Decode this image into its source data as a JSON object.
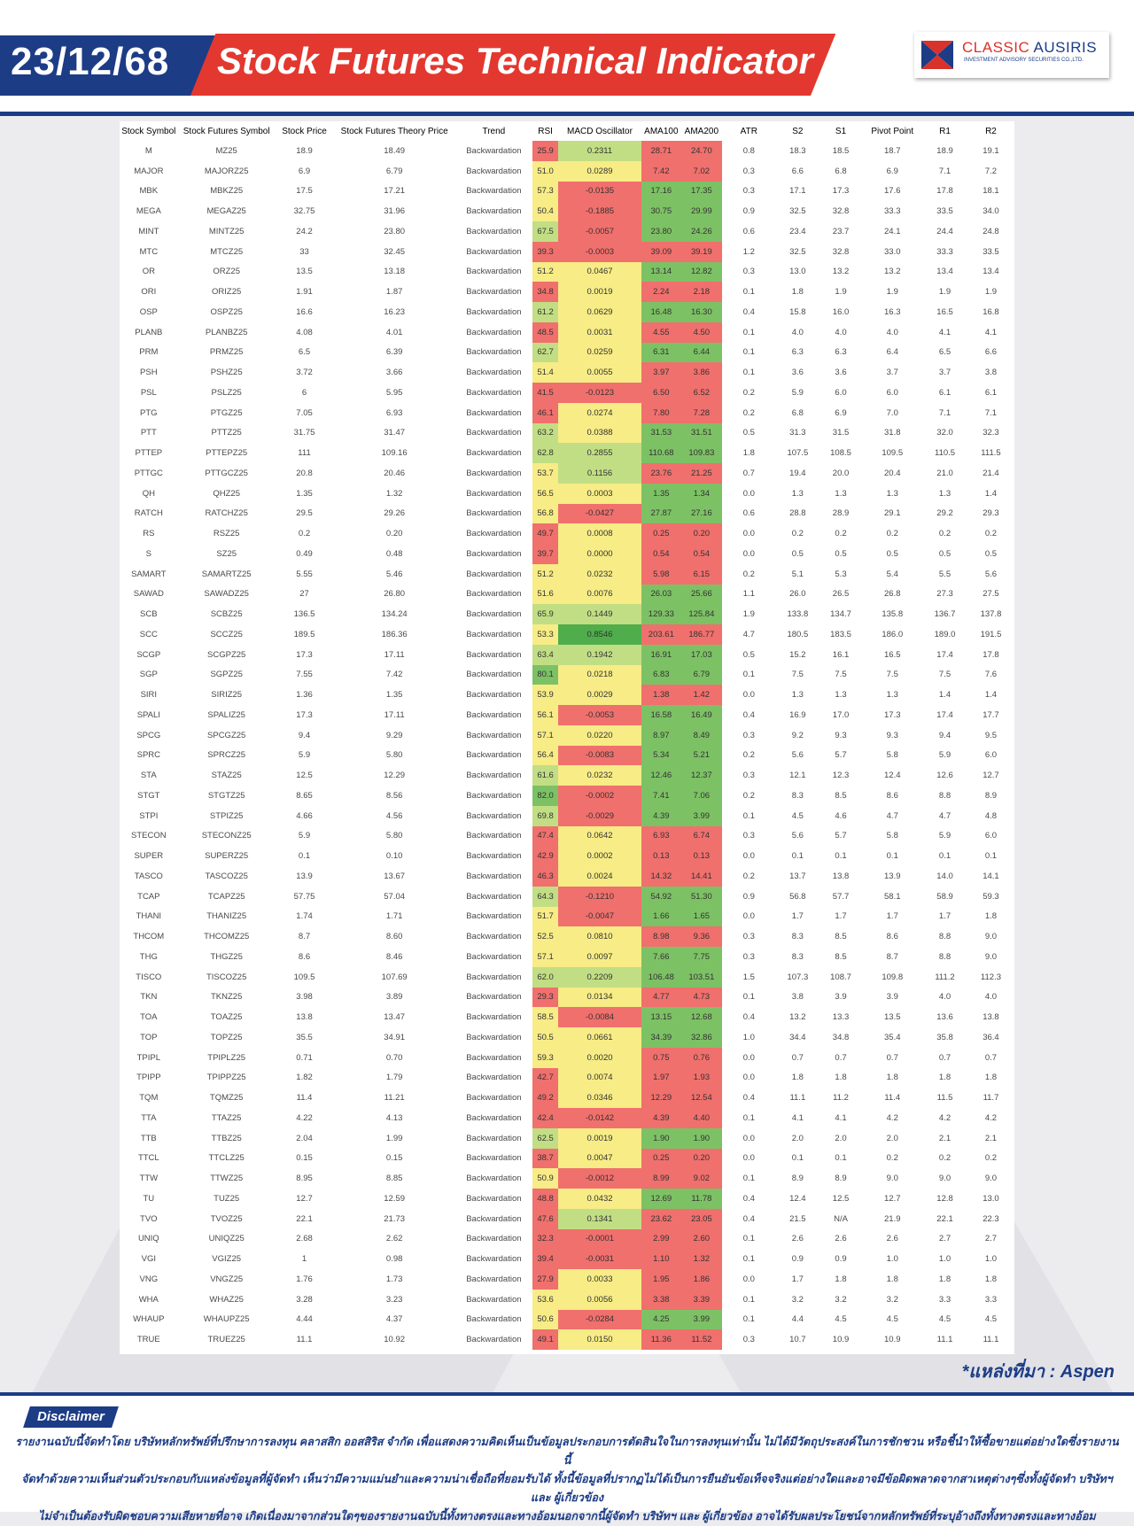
{
  "header": {
    "date": "23/12/68",
    "title": "Stock Futures Technical Indicator",
    "logo_name_a": "CLASSIC ",
    "logo_name_b": "AUSIRIS",
    "logo_sub": "INVESTMENT ADVISORY SECURITIES CO.,LTD."
  },
  "colors": {
    "brand_blue": "#1c3c86",
    "brand_red": "#e3382f",
    "cell_red": "#f0706d",
    "cell_yellow": "#f7ec86",
    "cell_green_light": "#c2de84",
    "cell_green": "#7dc165",
    "cell_green_strong": "#4fae4b"
  },
  "table": {
    "columns": [
      "Stock Symbol",
      "Stock Futures Symbol",
      "Stock Price",
      "Stock Futures Theory Price",
      "Trend",
      "RSI",
      "MACD Oscillator",
      "AMA100",
      "AMA200",
      "ATR",
      "S2",
      "S1",
      "Pivot Point",
      "R1",
      "R2"
    ],
    "rows": [
      [
        "M",
        "MZ25",
        "18.9",
        "18.49",
        "Backwardation",
        "25.9",
        "0.2311",
        "28.71",
        "24.70",
        "0.8",
        "18.3",
        "18.5",
        "18.7",
        "18.9",
        "19.1"
      ],
      [
        "MAJOR",
        "MAJORZ25",
        "6.9",
        "6.79",
        "Backwardation",
        "51.0",
        "0.0289",
        "7.42",
        "7.02",
        "0.3",
        "6.6",
        "6.8",
        "6.9",
        "7.1",
        "7.2"
      ],
      [
        "MBK",
        "MBKZ25",
        "17.5",
        "17.21",
        "Backwardation",
        "57.3",
        "-0.0135",
        "17.16",
        "17.35",
        "0.3",
        "17.1",
        "17.3",
        "17.6",
        "17.8",
        "18.1"
      ],
      [
        "MEGA",
        "MEGAZ25",
        "32.75",
        "31.96",
        "Backwardation",
        "50.4",
        "-0.1885",
        "30.75",
        "29.99",
        "0.9",
        "32.5",
        "32.8",
        "33.3",
        "33.5",
        "34.0"
      ],
      [
        "MINT",
        "MINTZ25",
        "24.2",
        "23.80",
        "Backwardation",
        "67.5",
        "-0.0057",
        "23.80",
        "24.26",
        "0.6",
        "23.4",
        "23.7",
        "24.1",
        "24.4",
        "24.8"
      ],
      [
        "MTC",
        "MTCZ25",
        "33",
        "32.45",
        "Backwardation",
        "39.3",
        "-0.0003",
        "39.09",
        "39.19",
        "1.2",
        "32.5",
        "32.8",
        "33.0",
        "33.3",
        "33.5"
      ],
      [
        "OR",
        "ORZ25",
        "13.5",
        "13.18",
        "Backwardation",
        "51.2",
        "0.0467",
        "13.14",
        "12.82",
        "0.3",
        "13.0",
        "13.2",
        "13.2",
        "13.4",
        "13.4"
      ],
      [
        "ORI",
        "ORIZ25",
        "1.91",
        "1.87",
        "Backwardation",
        "34.8",
        "0.0019",
        "2.24",
        "2.18",
        "0.1",
        "1.8",
        "1.9",
        "1.9",
        "1.9",
        "1.9"
      ],
      [
        "OSP",
        "OSPZ25",
        "16.6",
        "16.23",
        "Backwardation",
        "61.2",
        "0.0629",
        "16.48",
        "16.30",
        "0.4",
        "15.8",
        "16.0",
        "16.3",
        "16.5",
        "16.8"
      ],
      [
        "PLANB",
        "PLANBZ25",
        "4.08",
        "4.01",
        "Backwardation",
        "48.5",
        "0.0031",
        "4.55",
        "4.50",
        "0.1",
        "4.0",
        "4.0",
        "4.0",
        "4.1",
        "4.1"
      ],
      [
        "PRM",
        "PRMZ25",
        "6.5",
        "6.39",
        "Backwardation",
        "62.7",
        "0.0259",
        "6.31",
        "6.44",
        "0.1",
        "6.3",
        "6.3",
        "6.4",
        "6.5",
        "6.6"
      ],
      [
        "PSH",
        "PSHZ25",
        "3.72",
        "3.66",
        "Backwardation",
        "51.4",
        "0.0055",
        "3.97",
        "3.86",
        "0.1",
        "3.6",
        "3.6",
        "3.7",
        "3.7",
        "3.8"
      ],
      [
        "PSL",
        "PSLZ25",
        "6",
        "5.95",
        "Backwardation",
        "41.5",
        "-0.0123",
        "6.50",
        "6.52",
        "0.2",
        "5.9",
        "6.0",
        "6.0",
        "6.1",
        "6.1"
      ],
      [
        "PTG",
        "PTGZ25",
        "7.05",
        "6.93",
        "Backwardation",
        "46.1",
        "0.0274",
        "7.80",
        "7.28",
        "0.2",
        "6.8",
        "6.9",
        "7.0",
        "7.1",
        "7.1"
      ],
      [
        "PTT",
        "PTTZ25",
        "31.75",
        "31.47",
        "Backwardation",
        "63.2",
        "0.0388",
        "31.53",
        "31.51",
        "0.5",
        "31.3",
        "31.5",
        "31.8",
        "32.0",
        "32.3"
      ],
      [
        "PTTEP",
        "PTTEPZ25",
        "111",
        "109.16",
        "Backwardation",
        "62.8",
        "0.2855",
        "110.68",
        "109.83",
        "1.8",
        "107.5",
        "108.5",
        "109.5",
        "110.5",
        "111.5"
      ],
      [
        "PTTGC",
        "PTTGCZ25",
        "20.8",
        "20.46",
        "Backwardation",
        "53.7",
        "0.1156",
        "23.76",
        "21.25",
        "0.7",
        "19.4",
        "20.0",
        "20.4",
        "21.0",
        "21.4"
      ],
      [
        "QH",
        "QHZ25",
        "1.35",
        "1.32",
        "Backwardation",
        "56.5",
        "0.0003",
        "1.35",
        "1.34",
        "0.0",
        "1.3",
        "1.3",
        "1.3",
        "1.3",
        "1.4"
      ],
      [
        "RATCH",
        "RATCHZ25",
        "29.5",
        "29.26",
        "Backwardation",
        "56.8",
        "-0.0427",
        "27.87",
        "27.16",
        "0.6",
        "28.8",
        "28.9",
        "29.1",
        "29.2",
        "29.3"
      ],
      [
        "RS",
        "RSZ25",
        "0.2",
        "0.20",
        "Backwardation",
        "49.7",
        "0.0008",
        "0.25",
        "0.20",
        "0.0",
        "0.2",
        "0.2",
        "0.2",
        "0.2",
        "0.2"
      ],
      [
        "S",
        "SZ25",
        "0.49",
        "0.48",
        "Backwardation",
        "39.7",
        "0.0000",
        "0.54",
        "0.54",
        "0.0",
        "0.5",
        "0.5",
        "0.5",
        "0.5",
        "0.5"
      ],
      [
        "SAMART",
        "SAMARTZ25",
        "5.55",
        "5.46",
        "Backwardation",
        "51.2",
        "0.0232",
        "5.98",
        "6.15",
        "0.2",
        "5.1",
        "5.3",
        "5.4",
        "5.5",
        "5.6"
      ],
      [
        "SAWAD",
        "SAWADZ25",
        "27",
        "26.80",
        "Backwardation",
        "51.6",
        "0.0076",
        "26.03",
        "25.66",
        "1.1",
        "26.0",
        "26.5",
        "26.8",
        "27.3",
        "27.5"
      ],
      [
        "SCB",
        "SCBZ25",
        "136.5",
        "134.24",
        "Backwardation",
        "65.9",
        "0.1449",
        "129.33",
        "125.84",
        "1.9",
        "133.8",
        "134.7",
        "135.8",
        "136.7",
        "137.8"
      ],
      [
        "SCC",
        "SCCZ25",
        "189.5",
        "186.36",
        "Backwardation",
        "53.3",
        "0.8546",
        "203.61",
        "186.77",
        "4.7",
        "180.5",
        "183.5",
        "186.0",
        "189.0",
        "191.5"
      ],
      [
        "SCGP",
        "SCGPZ25",
        "17.3",
        "17.11",
        "Backwardation",
        "63.4",
        "0.1942",
        "16.91",
        "17.03",
        "0.5",
        "15.2",
        "16.1",
        "16.5",
        "17.4",
        "17.8"
      ],
      [
        "SGP",
        "SGPZ25",
        "7.55",
        "7.42",
        "Backwardation",
        "80.1",
        "0.0218",
        "6.83",
        "6.79",
        "0.1",
        "7.5",
        "7.5",
        "7.5",
        "7.5",
        "7.6"
      ],
      [
        "SIRI",
        "SIRIZ25",
        "1.36",
        "1.35",
        "Backwardation",
        "53.9",
        "0.0029",
        "1.38",
        "1.42",
        "0.0",
        "1.3",
        "1.3",
        "1.3",
        "1.4",
        "1.4"
      ],
      [
        "SPALI",
        "SPALIZ25",
        "17.3",
        "17.11",
        "Backwardation",
        "56.1",
        "-0.0053",
        "16.58",
        "16.49",
        "0.4",
        "16.9",
        "17.0",
        "17.3",
        "17.4",
        "17.7"
      ],
      [
        "SPCG",
        "SPCGZ25",
        "9.4",
        "9.29",
        "Backwardation",
        "57.1",
        "0.0220",
        "8.97",
        "8.49",
        "0.3",
        "9.2",
        "9.3",
        "9.3",
        "9.4",
        "9.5"
      ],
      [
        "SPRC",
        "SPRCZ25",
        "5.9",
        "5.80",
        "Backwardation",
        "56.4",
        "-0.0083",
        "5.34",
        "5.21",
        "0.2",
        "5.6",
        "5.7",
        "5.8",
        "5.9",
        "6.0"
      ],
      [
        "STA",
        "STAZ25",
        "12.5",
        "12.29",
        "Backwardation",
        "61.6",
        "0.0232",
        "12.46",
        "12.37",
        "0.3",
        "12.1",
        "12.3",
        "12.4",
        "12.6",
        "12.7"
      ],
      [
        "STGT",
        "STGTZ25",
        "8.65",
        "8.56",
        "Backwardation",
        "82.0",
        "-0.0002",
        "7.41",
        "7.06",
        "0.2",
        "8.3",
        "8.5",
        "8.6",
        "8.8",
        "8.9"
      ],
      [
        "STPI",
        "STPIZ25",
        "4.66",
        "4.56",
        "Backwardation",
        "69.8",
        "-0.0029",
        "4.39",
        "3.99",
        "0.1",
        "4.5",
        "4.6",
        "4.7",
        "4.7",
        "4.8"
      ],
      [
        "STECON",
        "STECONZ25",
        "5.9",
        "5.80",
        "Backwardation",
        "47.4",
        "0.0642",
        "6.93",
        "6.74",
        "0.3",
        "5.6",
        "5.7",
        "5.8",
        "5.9",
        "6.0"
      ],
      [
        "SUPER",
        "SUPERZ25",
        "0.1",
        "0.10",
        "Backwardation",
        "42.9",
        "0.0002",
        "0.13",
        "0.13",
        "0.0",
        "0.1",
        "0.1",
        "0.1",
        "0.1",
        "0.1"
      ],
      [
        "TASCO",
        "TASCOZ25",
        "13.9",
        "13.67",
        "Backwardation",
        "46.3",
        "0.0024",
        "14.32",
        "14.41",
        "0.2",
        "13.7",
        "13.8",
        "13.9",
        "14.0",
        "14.1"
      ],
      [
        "TCAP",
        "TCAPZ25",
        "57.75",
        "57.04",
        "Backwardation",
        "64.3",
        "-0.1210",
        "54.92",
        "51.30",
        "0.9",
        "56.8",
        "57.7",
        "58.1",
        "58.9",
        "59.3"
      ],
      [
        "THANI",
        "THANIZ25",
        "1.74",
        "1.71",
        "Backwardation",
        "51.7",
        "-0.0047",
        "1.66",
        "1.65",
        "0.0",
        "1.7",
        "1.7",
        "1.7",
        "1.7",
        "1.8"
      ],
      [
        "THCOM",
        "THCOMZ25",
        "8.7",
        "8.60",
        "Backwardation",
        "52.5",
        "0.0810",
        "8.98",
        "9.36",
        "0.3",
        "8.3",
        "8.5",
        "8.6",
        "8.8",
        "9.0"
      ],
      [
        "THG",
        "THGZ25",
        "8.6",
        "8.46",
        "Backwardation",
        "57.1",
        "0.0097",
        "7.66",
        "7.75",
        "0.3",
        "8.3",
        "8.5",
        "8.7",
        "8.8",
        "9.0"
      ],
      [
        "TISCO",
        "TISCOZ25",
        "109.5",
        "107.69",
        "Backwardation",
        "62.0",
        "0.2209",
        "106.48",
        "103.51",
        "1.5",
        "107.3",
        "108.7",
        "109.8",
        "111.2",
        "112.3"
      ],
      [
        "TKN",
        "TKNZ25",
        "3.98",
        "3.89",
        "Backwardation",
        "29.3",
        "0.0134",
        "4.77",
        "4.73",
        "0.1",
        "3.8",
        "3.9",
        "3.9",
        "4.0",
        "4.0"
      ],
      [
        "TOA",
        "TOAZ25",
        "13.8",
        "13.47",
        "Backwardation",
        "58.5",
        "-0.0084",
        "13.15",
        "12.68",
        "0.4",
        "13.2",
        "13.3",
        "13.5",
        "13.6",
        "13.8"
      ],
      [
        "TOP",
        "TOPZ25",
        "35.5",
        "34.91",
        "Backwardation",
        "50.5",
        "0.0661",
        "34.39",
        "32.86",
        "1.0",
        "34.4",
        "34.8",
        "35.4",
        "35.8",
        "36.4"
      ],
      [
        "TPIPL",
        "TPIPLZ25",
        "0.71",
        "0.70",
        "Backwardation",
        "59.3",
        "0.0020",
        "0.75",
        "0.76",
        "0.0",
        "0.7",
        "0.7",
        "0.7",
        "0.7",
        "0.7"
      ],
      [
        "TPIPP",
        "TPIPPZ25",
        "1.82",
        "1.79",
        "Backwardation",
        "42.7",
        "0.0074",
        "1.97",
        "1.93",
        "0.0",
        "1.8",
        "1.8",
        "1.8",
        "1.8",
        "1.8"
      ],
      [
        "TQM",
        "TQMZ25",
        "11.4",
        "11.21",
        "Backwardation",
        "49.2",
        "0.0346",
        "12.29",
        "12.54",
        "0.4",
        "11.1",
        "11.2",
        "11.4",
        "11.5",
        "11.7"
      ],
      [
        "TTA",
        "TTAZ25",
        "4.22",
        "4.13",
        "Backwardation",
        "42.4",
        "-0.0142",
        "4.39",
        "4.40",
        "0.1",
        "4.1",
        "4.1",
        "4.2",
        "4.2",
        "4.2"
      ],
      [
        "TTB",
        "TTBZ25",
        "2.04",
        "1.99",
        "Backwardation",
        "62.5",
        "0.0019",
        "1.90",
        "1.90",
        "0.0",
        "2.0",
        "2.0",
        "2.0",
        "2.1",
        "2.1"
      ],
      [
        "TTCL",
        "TTCLZ25",
        "0.15",
        "0.15",
        "Backwardation",
        "38.7",
        "0.0047",
        "0.25",
        "0.20",
        "0.0",
        "0.1",
        "0.1",
        "0.2",
        "0.2",
        "0.2"
      ],
      [
        "TTW",
        "TTWZ25",
        "8.95",
        "8.85",
        "Backwardation",
        "50.9",
        "-0.0012",
        "8.99",
        "9.02",
        "0.1",
        "8.9",
        "8.9",
        "9.0",
        "9.0",
        "9.0"
      ],
      [
        "TU",
        "TUZ25",
        "12.7",
        "12.59",
        "Backwardation",
        "48.8",
        "0.0432",
        "12.69",
        "11.78",
        "0.4",
        "12.4",
        "12.5",
        "12.7",
        "12.8",
        "13.0"
      ],
      [
        "TVO",
        "TVOZ25",
        "22.1",
        "21.73",
        "Backwardation",
        "47.6",
        "0.1341",
        "23.62",
        "23.05",
        "0.4",
        "21.5",
        "N/A",
        "21.9",
        "22.1",
        "22.3"
      ],
      [
        "UNIQ",
        "UNIQZ25",
        "2.68",
        "2.62",
        "Backwardation",
        "32.3",
        "-0.0001",
        "2.99",
        "2.60",
        "0.1",
        "2.6",
        "2.6",
        "2.6",
        "2.7",
        "2.7"
      ],
      [
        "VGI",
        "VGIZ25",
        "1",
        "0.98",
        "Backwardation",
        "39.4",
        "-0.0031",
        "1.10",
        "1.32",
        "0.1",
        "0.9",
        "0.9",
        "1.0",
        "1.0",
        "1.0"
      ],
      [
        "VNG",
        "VNGZ25",
        "1.76",
        "1.73",
        "Backwardation",
        "27.9",
        "0.0033",
        "1.95",
        "1.86",
        "0.0",
        "1.7",
        "1.8",
        "1.8",
        "1.8",
        "1.8"
      ],
      [
        "WHA",
        "WHAZ25",
        "3.28",
        "3.23",
        "Backwardation",
        "53.6",
        "0.0056",
        "3.38",
        "3.39",
        "0.1",
        "3.2",
        "3.2",
        "3.2",
        "3.3",
        "3.3"
      ],
      [
        "WHAUP",
        "WHAUPZ25",
        "4.44",
        "4.37",
        "Backwardation",
        "50.6",
        "-0.0284",
        "4.25",
        "3.99",
        "0.1",
        "4.4",
        "4.5",
        "4.5",
        "4.5",
        "4.5"
      ],
      [
        "TRUE",
        "TRUEZ25",
        "11.1",
        "10.92",
        "Backwardation",
        "49.1",
        "0.0150",
        "11.36",
        "11.52",
        "0.3",
        "10.7",
        "10.9",
        "10.9",
        "11.1",
        "11.1"
      ]
    ]
  },
  "source": "*แหล่งที่มา : Aspen",
  "disclaimer": {
    "label": "Disclaimer",
    "lines": [
      "รายงานฉบับนี้จัดทำโดย บริษัทหลักทรัพย์ที่ปรึกษาการลงทุน คลาสสิก ออสสิริส จำกัด เพื่อแสดงความคิดเห็นเป็นข้อมูลประกอบการตัดสินใจในการลงทุนเท่านั้น ไม่ได้มีวัตถุประสงค์ในการชักชวน หรือชี้นำให้ซื้อขายแต่อย่างใดซึ่งรายงานนี้",
      "จัดทำด้วยความเห็นส่วนตัวประกอบกับแหล่งข้อมูลที่ผู้จัดทำ เห็นว่ามีความแม่นยำและความน่าเชื่อถือที่ยอมรับได้ ทั้งนี้ข้อมูลที่ปรากฏไม่ได้เป็นการยืนยันข้อเท็จจริงแต่อย่างใดและอาจมีข้อผิดพลาดจากสาเหตุต่างๆซึ่งทั้งผู้จัดทำ บริษัทฯ และ ผู้เกี่ยวข้อง",
      "ไม่จำเป็นต้องรับผิดชอบความเสียหายที่อาจ เกิดเนื่องมาจากส่วนใดๆของรายงานฉบับนี้ทั้งทางตรงและทางอ้อมนอกจากนี้ผู้จัดทำ บริษัทฯ และ ผู้เกี่ยวข้อง อาจได้รับผลประโยชน์จากหลักทรัพย์ที่ระบุอ้างถึงทั้งทางตรงและทางอ้อม"
    ]
  }
}
